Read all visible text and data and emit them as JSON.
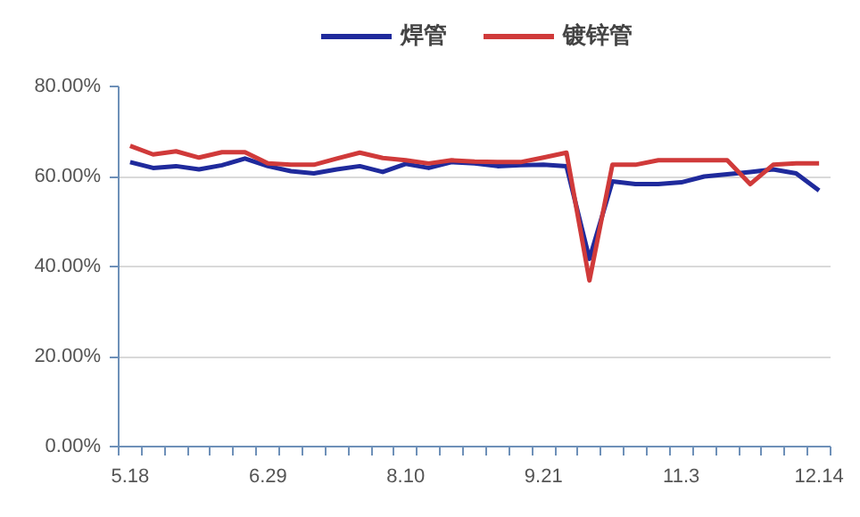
{
  "chart_data": {
    "type": "line",
    "categories": [
      "5.18",
      null,
      null,
      null,
      null,
      null,
      "6.29",
      null,
      null,
      null,
      null,
      null,
      "8.10",
      null,
      null,
      null,
      null,
      null,
      "9.21",
      null,
      null,
      null,
      null,
      null,
      "11.3",
      null,
      null,
      null,
      null,
      null,
      "12.14"
    ],
    "series": [
      {
        "name": "焊管",
        "color": "#1f2a9c",
        "values": [
          63.2,
          61.9,
          62.3,
          61.6,
          62.5,
          64.0,
          62.3,
          61.2,
          60.7,
          61.6,
          62.3,
          61.0,
          62.8,
          61.9,
          63.2,
          62.9,
          62.3,
          62.5,
          62.6,
          62.3,
          41.7,
          58.9,
          58.3,
          58.3,
          58.7,
          60.0,
          60.5,
          61.0,
          61.6,
          60.7,
          56.9
        ]
      },
      {
        "name": "镀锌管",
        "color": "#d03a3a",
        "values": [
          66.8,
          64.9,
          65.6,
          64.2,
          65.4,
          65.4,
          62.9,
          62.6,
          62.6,
          64.0,
          65.3,
          64.1,
          63.6,
          62.9,
          63.6,
          63.3,
          63.2,
          63.2,
          64.2,
          65.3,
          36.9,
          62.6,
          62.6,
          63.6,
          63.6,
          63.6,
          63.6,
          58.3,
          62.6,
          62.9,
          62.9
        ]
      }
    ],
    "ylim": [
      0,
      80
    ],
    "yticks": [
      {
        "value": 0,
        "label": "0.00%"
      },
      {
        "value": 20,
        "label": "20.00%"
      },
      {
        "value": 40,
        "label": "40.00%"
      },
      {
        "value": 60,
        "label": "60.00%"
      },
      {
        "value": 80,
        "label": "80.00%"
      }
    ],
    "grid": "y",
    "legend": "top",
    "marker": "none",
    "line_style": "solid"
  }
}
